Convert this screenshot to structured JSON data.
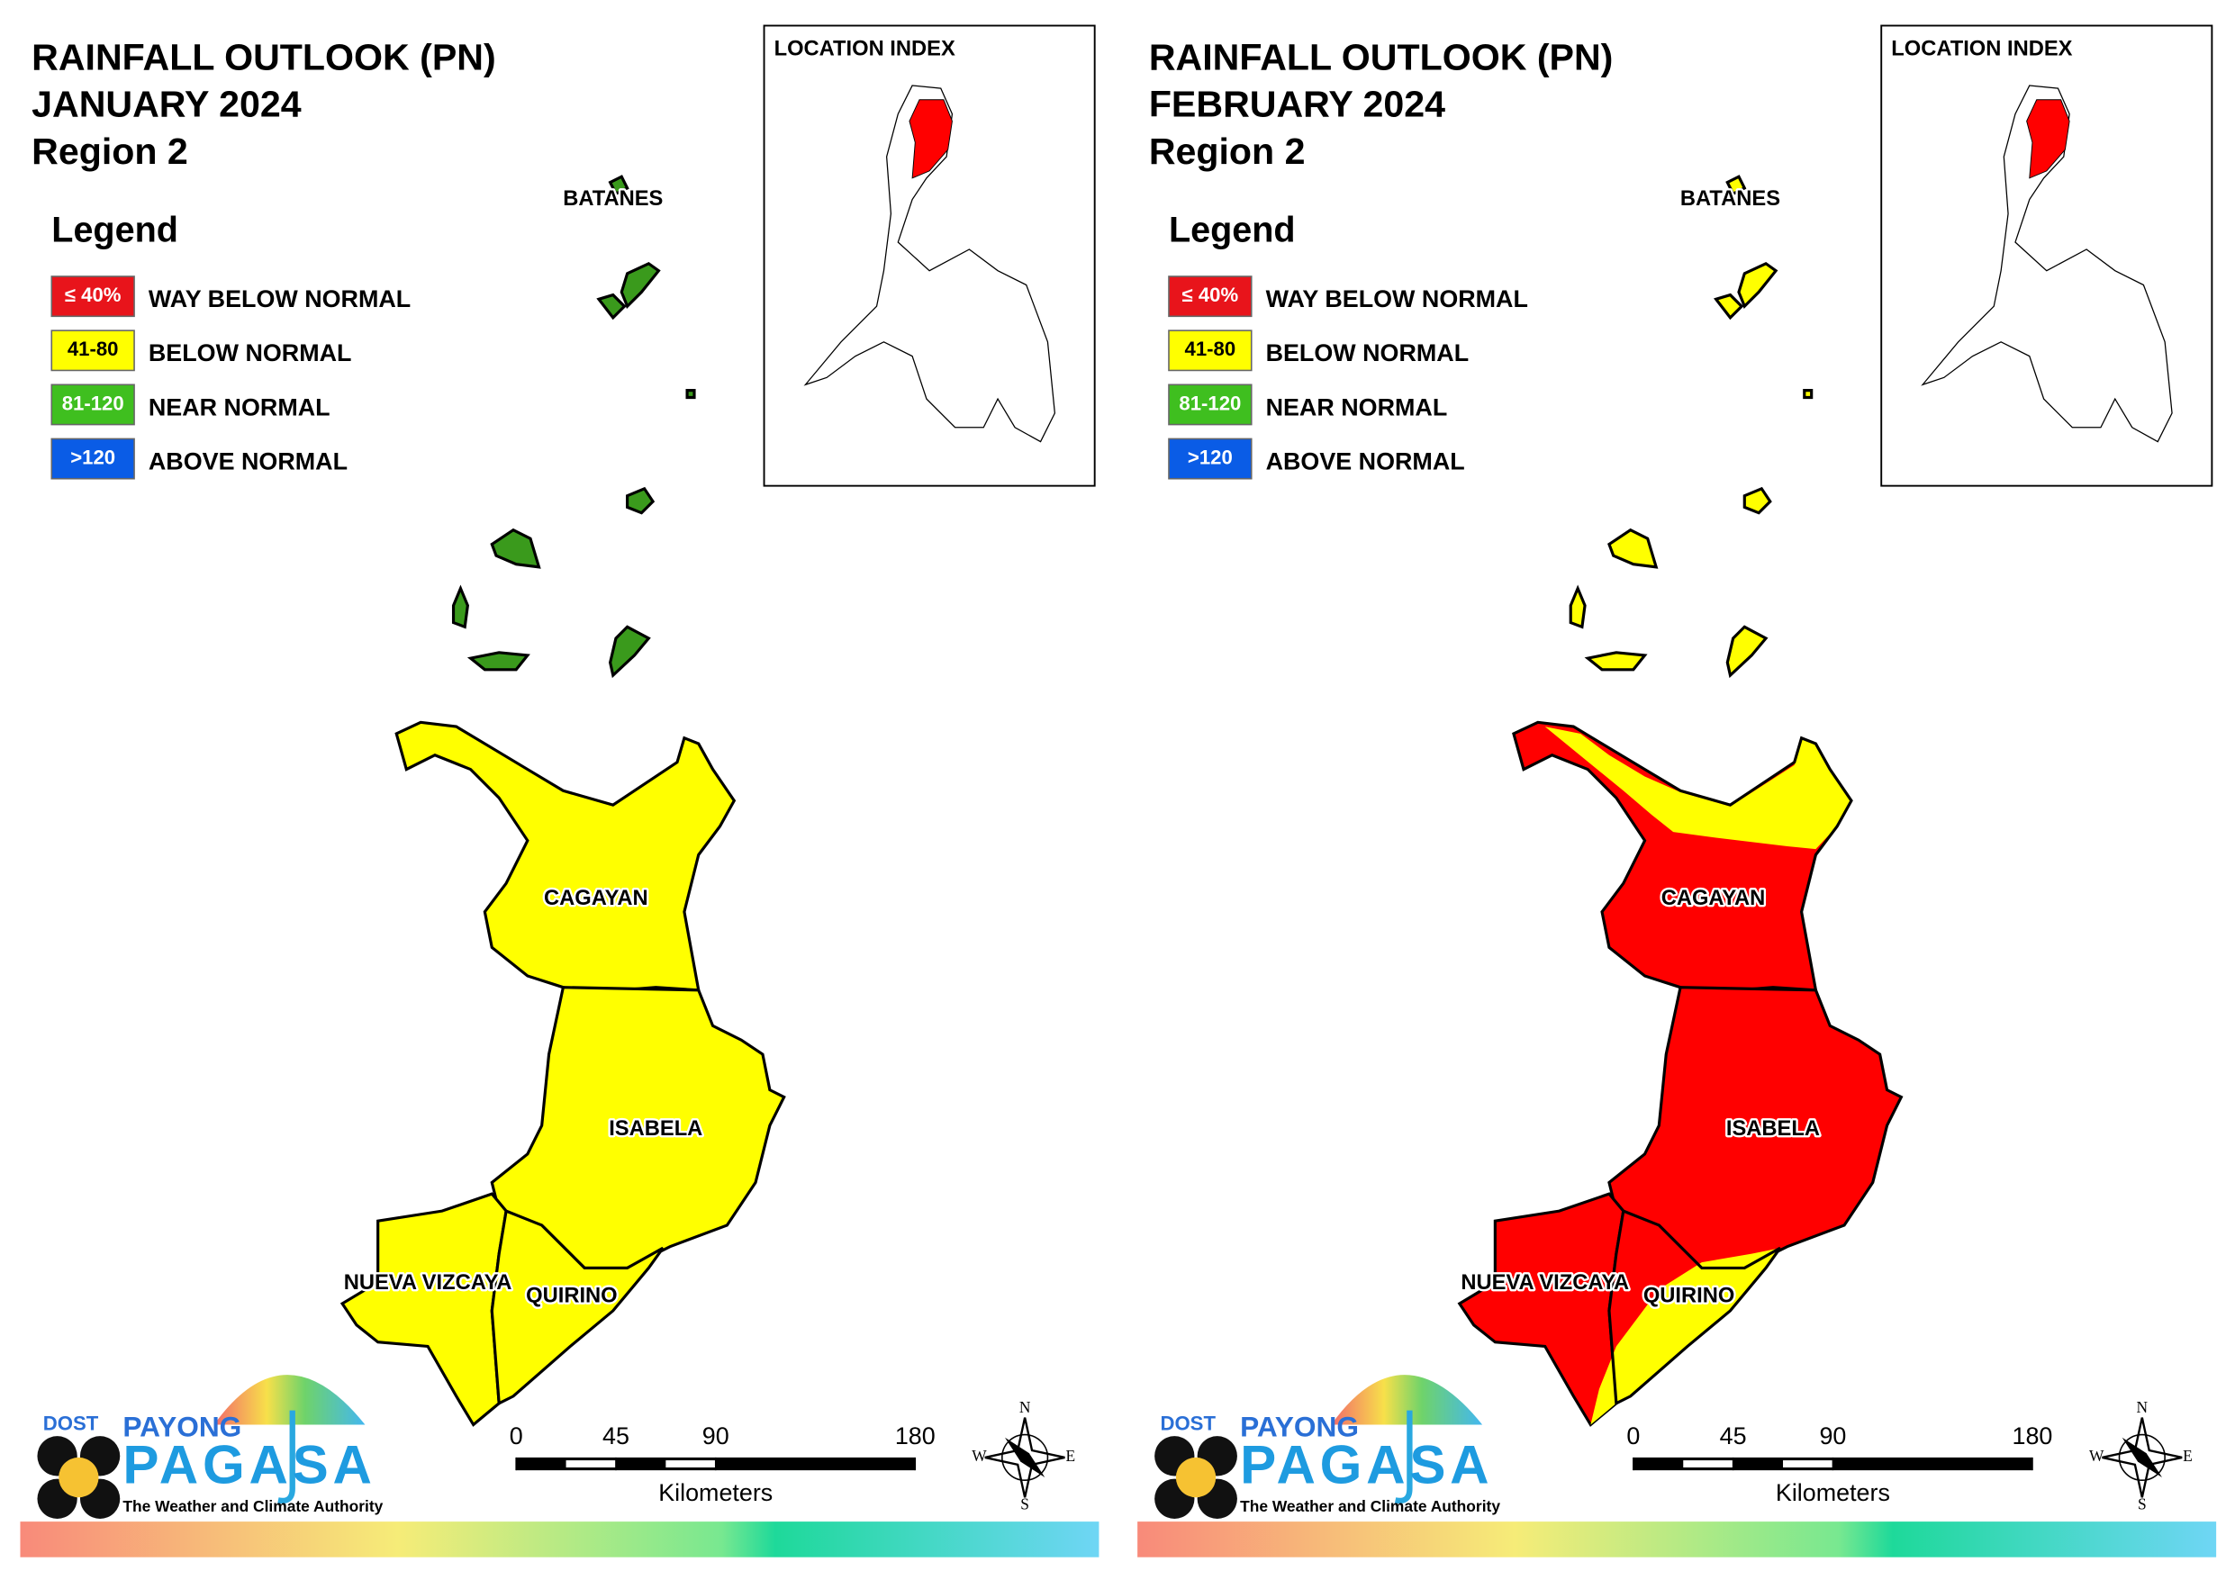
{
  "panels": [
    {
      "title": [
        "RAINFALL OUTLOOK (PN)",
        "JANUARY 2024",
        "Region 2"
      ],
      "legend_title": "Legend",
      "legend": [
        {
          "range": "≤ 40%",
          "label": "WAY BELOW NORMAL",
          "color": "#e8141b"
        },
        {
          "range": "41-80",
          "label": "BELOW NORMAL",
          "color": "#ffff00"
        },
        {
          "range": "81-120",
          "label": "NEAR NORMAL",
          "color": "#3fbf1f"
        },
        {
          "range": ">120",
          "label": "ABOVE NORMAL",
          "color": "#0a5ce6"
        }
      ],
      "location_index": "LOCATION INDEX",
      "provinces": [
        {
          "name": "BATANES",
          "colors": [
            "#3a9a1c"
          ]
        },
        {
          "name": "CAGAYAN",
          "colors": [
            "#ffff00"
          ]
        },
        {
          "name": "ISABELA",
          "colors": [
            "#ffff00"
          ]
        },
        {
          "name": "NUEVA VIZCAYA",
          "colors": [
            "#ffff00"
          ]
        },
        {
          "name": "QUIRINO",
          "colors": [
            "#ffff00"
          ]
        }
      ],
      "scale": {
        "ticks": [
          0,
          45,
          90,
          180
        ],
        "unit": "Kilometers"
      },
      "logo": {
        "agency": "DOST",
        "brand_top": "PAYONG",
        "brand": "PAGASA",
        "tagline": "The Weather and Climate Authority"
      },
      "compass": {
        "n": "N",
        "e": "E",
        "s": "S",
        "w": "W"
      }
    },
    {
      "title": [
        "RAINFALL OUTLOOK (PN)",
        "FEBRUARY 2024",
        "Region 2"
      ],
      "legend_title": "Legend",
      "legend": [
        {
          "range": "≤ 40%",
          "label": "WAY BELOW NORMAL",
          "color": "#e8141b"
        },
        {
          "range": "41-80",
          "label": "BELOW NORMAL",
          "color": "#ffff00"
        },
        {
          "range": "81-120",
          "label": "NEAR NORMAL",
          "color": "#3fbf1f"
        },
        {
          "range": ">120",
          "label": "ABOVE NORMAL",
          "color": "#0a5ce6"
        }
      ],
      "location_index": "LOCATION INDEX",
      "provinces": [
        {
          "name": "BATANES",
          "colors": [
            "#ffff00"
          ]
        },
        {
          "name": "CAGAYAN",
          "colors": [
            "#ff0000",
            "#ffff00"
          ]
        },
        {
          "name": "ISABELA",
          "colors": [
            "#ff0000"
          ]
        },
        {
          "name": "NUEVA VIZCAYA",
          "colors": [
            "#ff0000"
          ]
        },
        {
          "name": "QUIRINO",
          "colors": [
            "#ff0000",
            "#ffff00"
          ]
        }
      ],
      "scale": {
        "ticks": [
          0,
          45,
          90,
          180
        ],
        "unit": "Kilometers"
      },
      "logo": {
        "agency": "DOST",
        "brand_top": "PAYONG",
        "brand": "PAGASA",
        "tagline": "The Weather and Climate Authority"
      },
      "compass": {
        "n": "N",
        "e": "E",
        "s": "S",
        "w": "W"
      }
    }
  ]
}
